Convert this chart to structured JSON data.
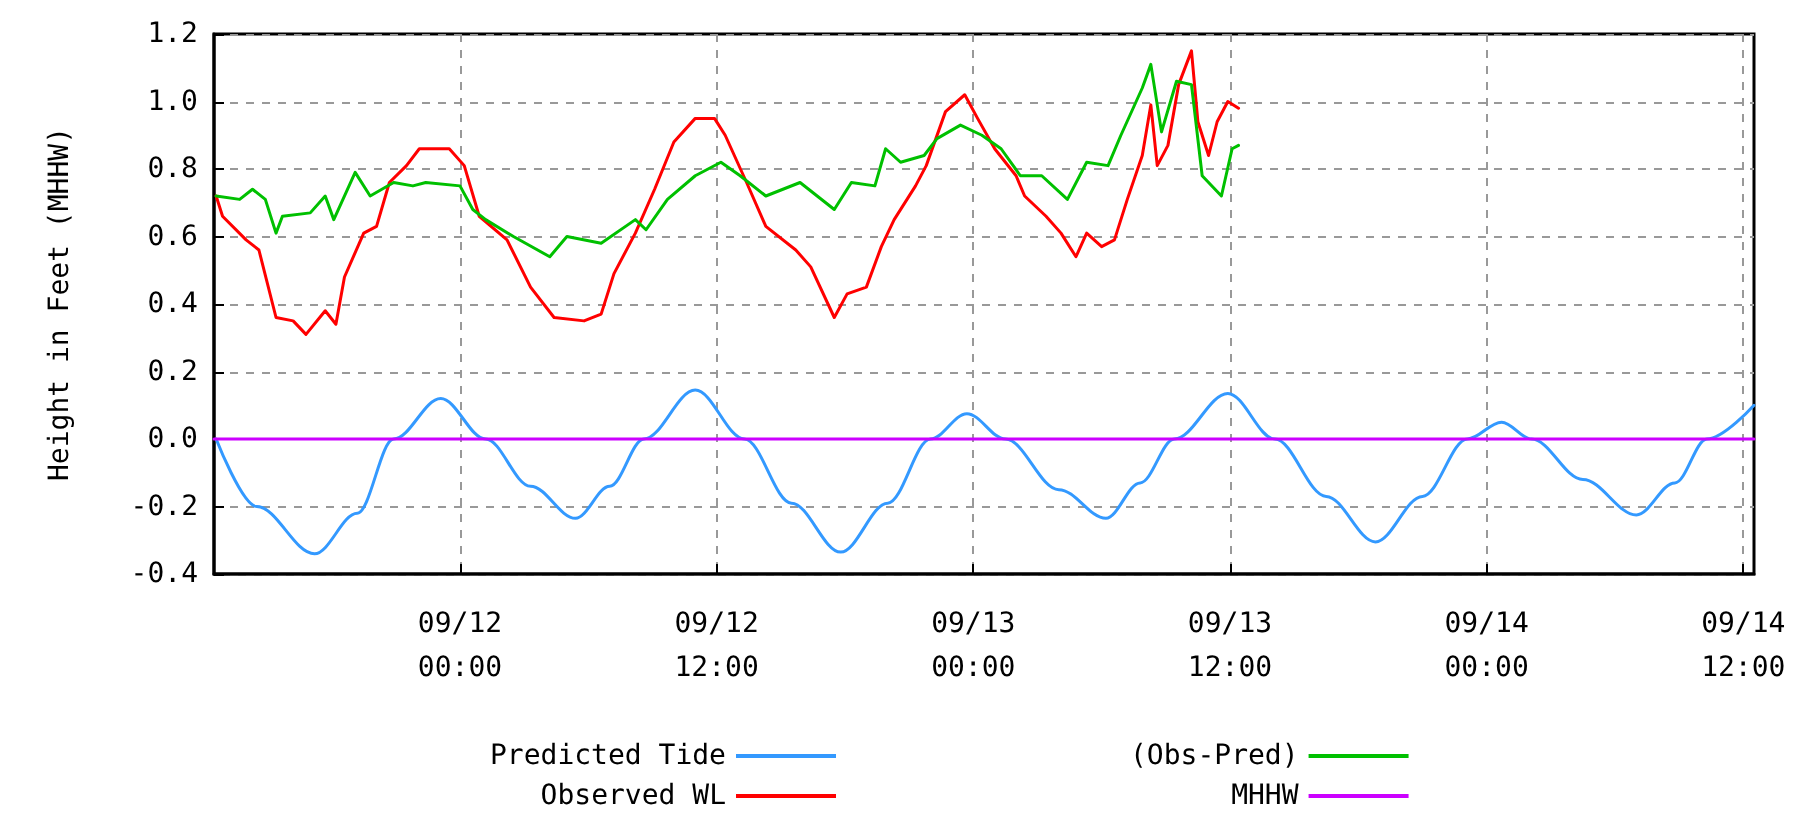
{
  "chart_data": {
    "type": "line",
    "ylabel": "Height in Feet (MHHW)",
    "xlim": [
      "--09-11T12:30",
      "--09-14T12:30"
    ],
    "xticks": [
      {
        "value": "--09-12T00:00",
        "label": "09/12\n00:00"
      },
      {
        "value": "--09-12T12:00",
        "label": "09/12\n12:00"
      },
      {
        "value": "--09-13T00:00",
        "label": "09/13\n00:00"
      },
      {
        "value": "--09-13T12:00",
        "label": "09/13\n12:00"
      },
      {
        "value": "--09-14T00:00",
        "label": "09/14\n00:00"
      },
      {
        "value": "--09-14T12:00",
        "label": "09/14\n12:00"
      }
    ],
    "ylim": [
      -0.4,
      1.2
    ],
    "yticks": [
      {
        "value": -0.4,
        "label": "-0.4"
      },
      {
        "value": -0.2,
        "label": "-0.2"
      },
      {
        "value": 0,
        "label": "0.0"
      },
      {
        "value": 0.2,
        "label": "0.2"
      },
      {
        "value": 0.4,
        "label": "0.4"
      },
      {
        "value": 0.6,
        "label": "0.6"
      },
      {
        "value": 0.8,
        "label": "0.8"
      },
      {
        "value": 1,
        "label": "1.0"
      },
      {
        "value": 1.2,
        "label": "1.2"
      }
    ],
    "grid": true,
    "legend": "bottom",
    "marker": "none",
    "line_style": "solid",
    "series": [
      {
        "name": "Predicted Tide",
        "color": "#3399ff",
        "x": [
          "--09-11T12:36",
          "--09-11T14:30",
          "--09-11T17:12",
          "--09-11T19:12",
          "--09-11T20:54",
          "--09-11T23:06",
          "--09-12T01:12",
          "--09-12T03:18",
          "--09-12T05:24",
          "--09-12T07:00",
          "--09-12T08:36",
          "--09-12T11:00",
          "--09-12T13:18",
          "--09-12T15:30",
          "--09-12T17:48",
          "--09-12T20:00",
          "--09-12T22:00",
          "--09-12T23:42",
          "--09-13T01:30",
          "--09-13T04:00",
          "--09-13T06:12",
          "--09-13T07:48",
          "--09-13T09:24",
          "--09-13T11:54",
          "--09-13T14:06",
          "--09-13T16:30",
          "--09-13T18:48",
          "--09-13T21:00",
          "--09-13T23:06",
          "--09-14T00:42",
          "--09-14T02:06",
          "--09-14T04:30",
          "--09-14T07:00",
          "--09-14T08:48",
          "--09-14T10:18",
          "--09-14T12:30"
        ],
        "values": [
          0,
          -0.2,
          -0.34,
          -0.22,
          0,
          0.12,
          0,
          -0.14,
          -0.235,
          -0.14,
          0,
          0.145,
          0,
          -0.19,
          -0.335,
          -0.19,
          0,
          0.075,
          0,
          -0.15,
          -0.235,
          -0.13,
          0,
          0.135,
          0,
          -0.17,
          -0.305,
          -0.17,
          0,
          0.05,
          0,
          -0.12,
          -0.225,
          -0.13,
          0,
          0.1
        ]
      },
      {
        "name": "Observed WL",
        "color": "#ff0000",
        "x": [
          "--09-11T12:36",
          "--09-11T12:54",
          "--09-11T14:00",
          "--09-11T14:36",
          "--09-11T15:24",
          "--09-11T16:12",
          "--09-11T16:48",
          "--09-11T17:42",
          "--09-11T18:12",
          "--09-11T18:36",
          "--09-11T19:30",
          "--09-11T20:06",
          "--09-11T20:42",
          "--09-11T21:30",
          "--09-11T22:06",
          "--09-11T23:30",
          "--09-12T00:12",
          "--09-12T00:54",
          "--09-12T02:12",
          "--09-12T03:18",
          "--09-12T04:24",
          "--09-12T05:48",
          "--09-12T06:36",
          "--09-12T07:12",
          "--09-12T08:12",
          "--09-12T09:06",
          "--09-12T10:00",
          "--09-12T11:00",
          "--09-12T11:54",
          "--09-12T12:24",
          "--09-12T13:24",
          "--09-12T14:18",
          "--09-12T15:42",
          "--09-12T16:24",
          "--09-12T17:30",
          "--09-12T18:06",
          "--09-12T19:00",
          "--09-12T19:42",
          "--09-12T20:18",
          "--09-12T21:18",
          "--09-12T21:48",
          "--09-12T22:42",
          "--09-12T23:36",
          "--09-13T00:12",
          "--09-13T01:00",
          "--09-13T02:00",
          "--09-13T02:24",
          "--09-13T03:24",
          "--09-13T04:06",
          "--09-13T04:48",
          "--09-13T05:18",
          "--09-13T06:00",
          "--09-13T06:36",
          "--09-13T07:12",
          "--09-13T07:54",
          "--09-13T08:18",
          "--09-13T08:36",
          "--09-13T09:06",
          "--09-13T09:36",
          "--09-13T10:12",
          "--09-13T10:30",
          "--09-13T11:00",
          "--09-13T11:24",
          "--09-13T11:54",
          "--09-13T12:24"
        ],
        "values": [
          0.72,
          0.66,
          0.59,
          0.56,
          0.36,
          0.35,
          0.31,
          0.38,
          0.34,
          0.48,
          0.61,
          0.63,
          0.76,
          0.81,
          0.86,
          0.86,
          0.81,
          0.66,
          0.59,
          0.45,
          0.36,
          0.35,
          0.37,
          0.49,
          0.61,
          0.74,
          0.88,
          0.95,
          0.95,
          0.9,
          0.76,
          0.63,
          0.56,
          0.51,
          0.36,
          0.43,
          0.45,
          0.57,
          0.65,
          0.75,
          0.81,
          0.97,
          1.02,
          0.95,
          0.86,
          0.78,
          0.72,
          0.66,
          0.61,
          0.54,
          0.61,
          0.57,
          0.59,
          0.71,
          0.84,
          0.99,
          0.81,
          0.87,
          1.05,
          1.15,
          0.94,
          0.84,
          0.94,
          1.0,
          0.98
        ]
      },
      {
        "name": "(Obs-Pred)",
        "color": "#00c000",
        "x": [
          "--09-11T12:36",
          "--09-11T13:42",
          "--09-11T14:18",
          "--09-11T14:54",
          "--09-11T15:24",
          "--09-11T15:42",
          "--09-11T17:00",
          "--09-11T17:42",
          "--09-11T18:06",
          "--09-11T19:06",
          "--09-11T19:48",
          "--09-11T20:54",
          "--09-11T21:48",
          "--09-11T22:24",
          "--09-12T00:00",
          "--09-12T00:36",
          "--09-12T01:12",
          "--09-12T02:30",
          "--09-12T04:12",
          "--09-12T05:00",
          "--09-12T06:36",
          "--09-12T08:12",
          "--09-12T08:42",
          "--09-12T09:42",
          "--09-12T11:00",
          "--09-12T12:12",
          "--09-12T13:06",
          "--09-12T14:18",
          "--09-12T15:54",
          "--09-12T17:30",
          "--09-12T18:18",
          "--09-12T19:24",
          "--09-12T19:54",
          "--09-12T20:36",
          "--09-12T21:42",
          "--09-12T22:18",
          "--09-12T23:24",
          "--09-13T00:24",
          "--09-13T01:18",
          "--09-13T02:12",
          "--09-13T03:12",
          "--09-13T04:24",
          "--09-13T05:18",
          "--09-13T06:18",
          "--09-13T06:54",
          "--09-13T07:54",
          "--09-13T08:18",
          "--09-13T08:48",
          "--09-13T09:30",
          "--09-13T10:12",
          "--09-13T10:42",
          "--09-13T11:36",
          "--09-13T12:06",
          "--09-13T12:24"
        ],
        "values": [
          0.72,
          0.71,
          0.74,
          0.71,
          0.61,
          0.66,
          0.67,
          0.72,
          0.65,
          0.79,
          0.72,
          0.76,
          0.75,
          0.76,
          0.75,
          0.68,
          0.65,
          0.6,
          0.54,
          0.6,
          0.58,
          0.65,
          0.62,
          0.71,
          0.78,
          0.82,
          0.78,
          0.72,
          0.76,
          0.68,
          0.76,
          0.75,
          0.86,
          0.82,
          0.84,
          0.89,
          0.93,
          0.9,
          0.86,
          0.78,
          0.78,
          0.71,
          0.82,
          0.81,
          0.9,
          1.04,
          1.11,
          0.91,
          1.06,
          1.05,
          0.78,
          0.72,
          0.86,
          0.87
        ]
      },
      {
        "name": "MHHW",
        "color": "#cc00ff",
        "x": [
          "--09-11T12:30",
          "--09-14T12:30"
        ],
        "values": [
          0,
          0
        ]
      }
    ]
  }
}
